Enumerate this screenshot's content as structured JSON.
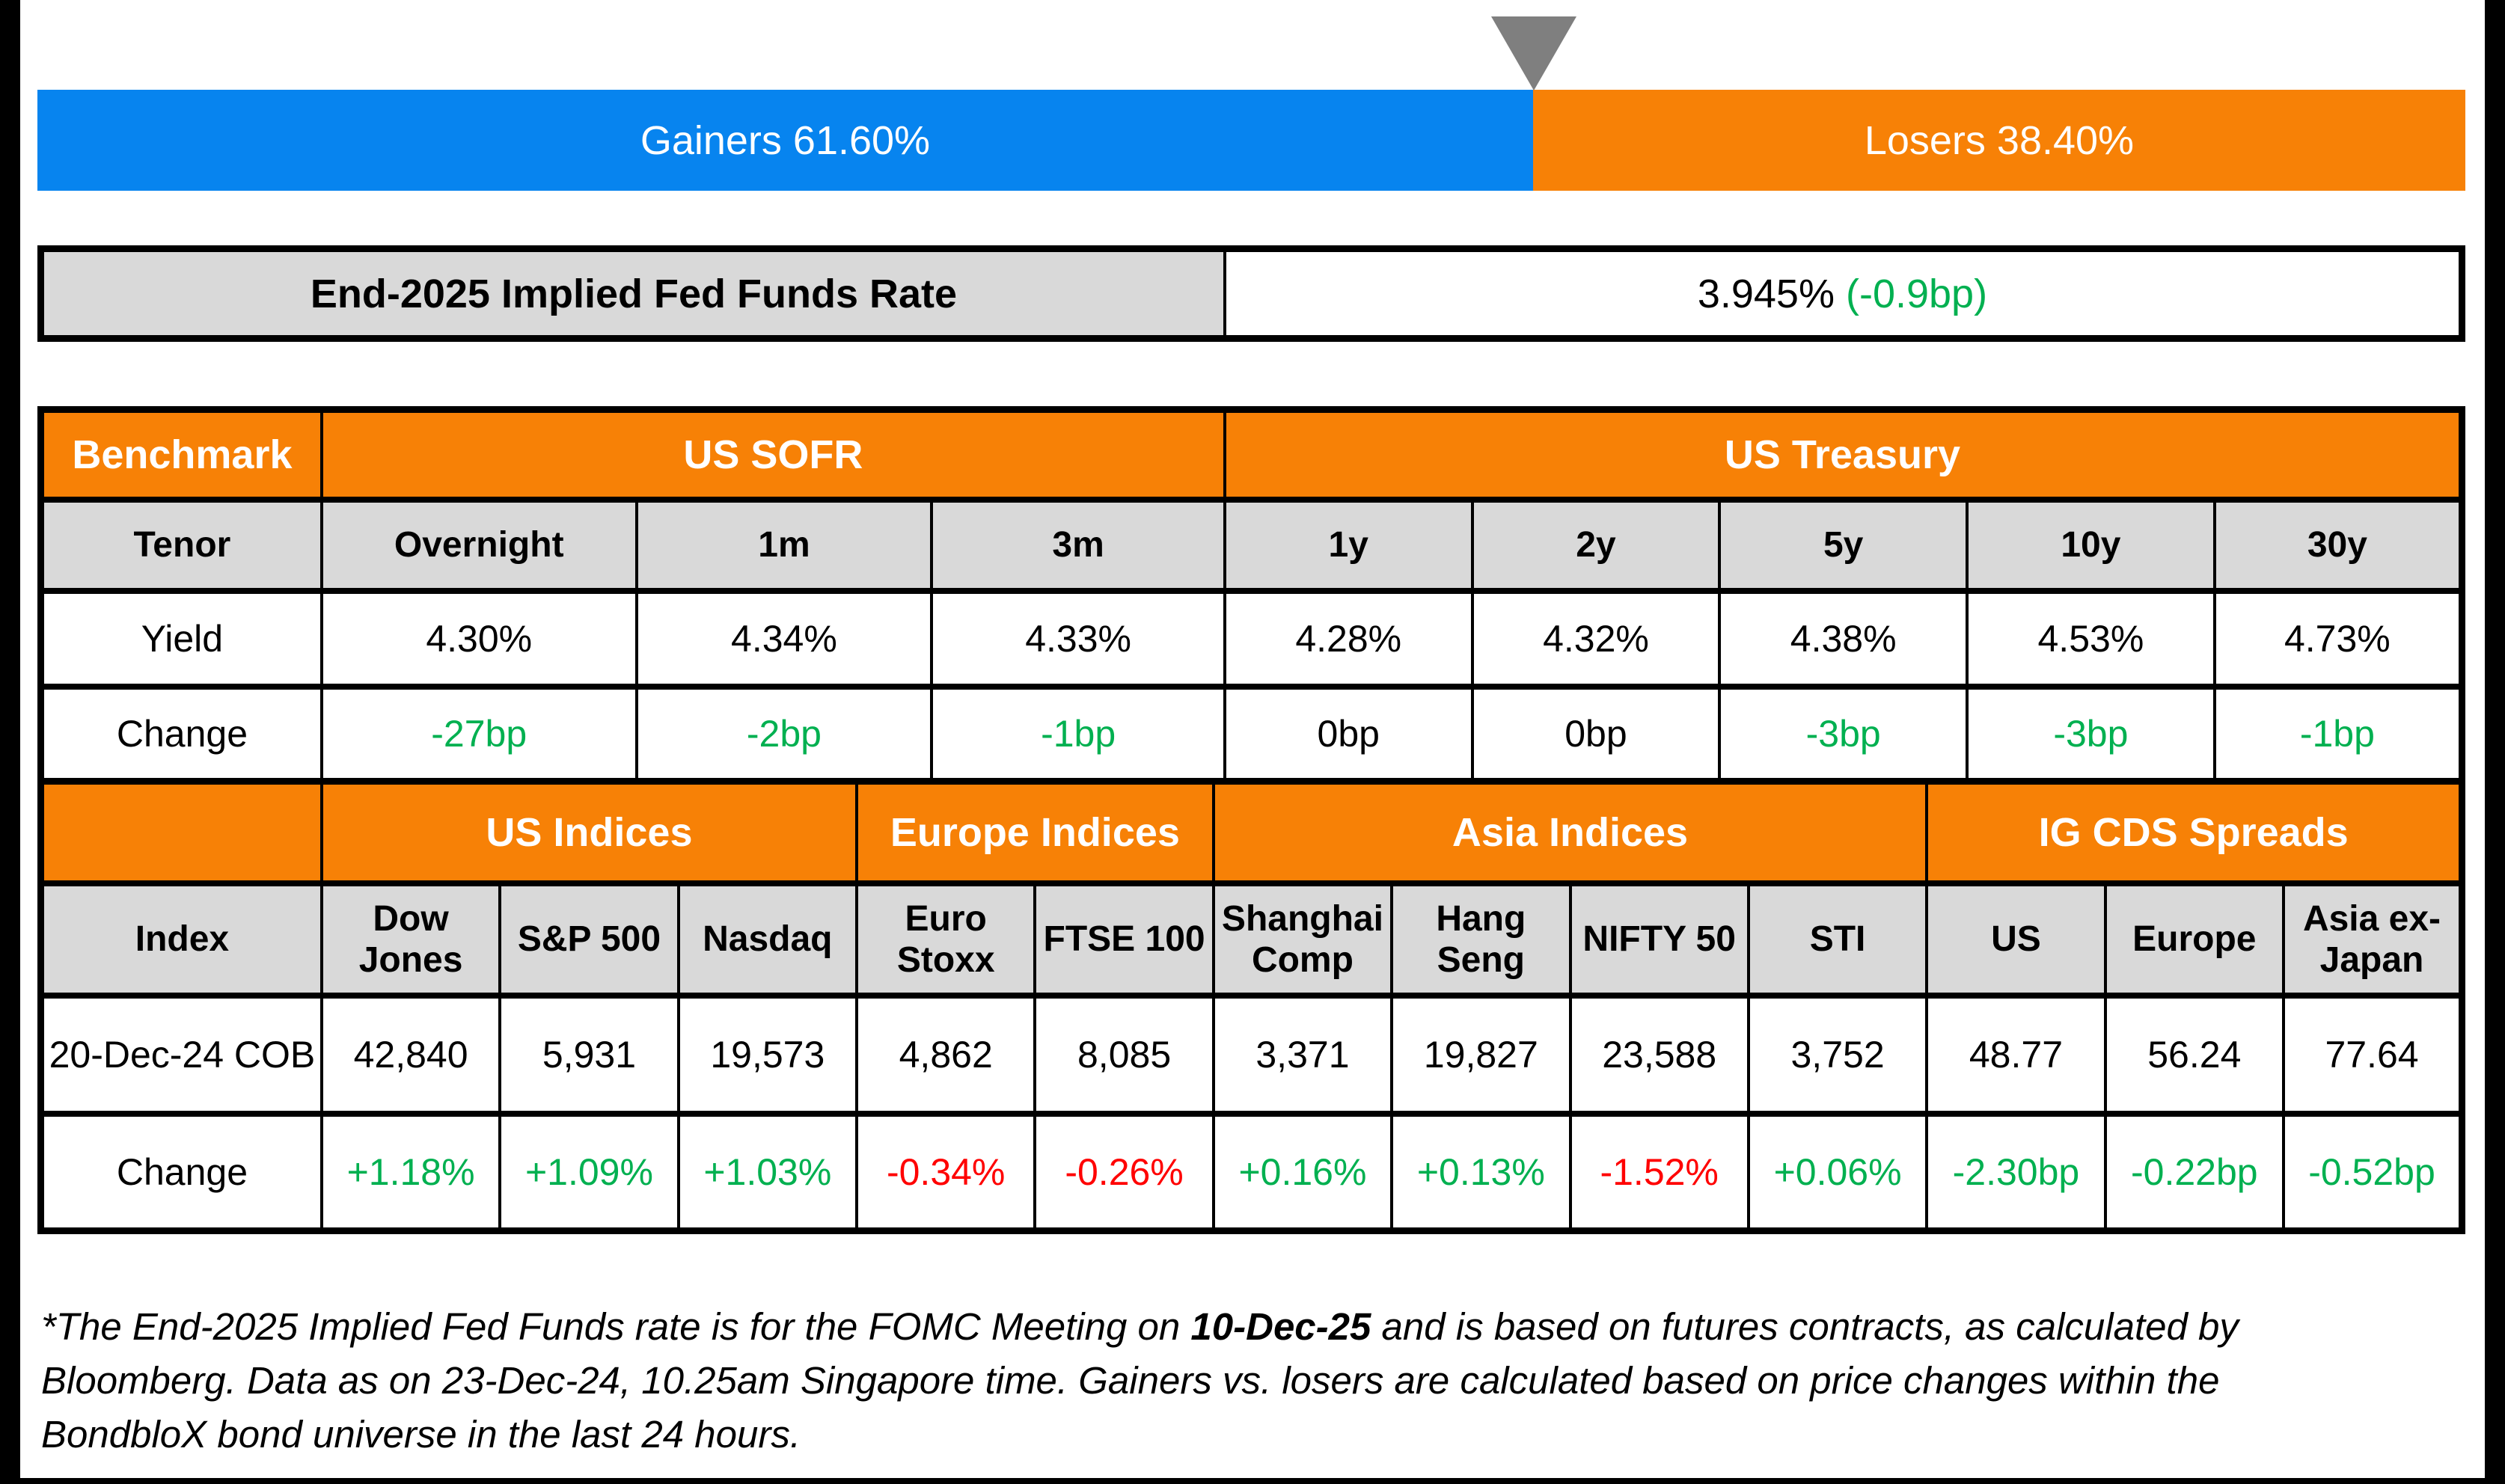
{
  "colors": {
    "gainers_blue": "#0784EF",
    "losers_orange": "#F78106",
    "header_orange": "#F78106",
    "positive_green": "#00B050",
    "negative_red": "#FF0000",
    "subheader_gray": "#D9D9D9",
    "marker_gray": "#7F7F7F",
    "border_black": "#000000"
  },
  "gainers_losers_bar": {
    "gainers": {
      "label": "Gainers 61.60%",
      "pct": 61.6
    },
    "losers": {
      "label": "Losers 38.40%",
      "pct": 38.4
    }
  },
  "fed_funds": {
    "label": "End-2025 Implied Fed Funds Rate",
    "value": "3.945%",
    "change": "(-0.9bp)"
  },
  "benchmark": {
    "corner": "Benchmark",
    "sofr_group": "US SOFR",
    "treasury_group": "US Treasury",
    "tenor": {
      "label": "Tenor",
      "cells": [
        "Overnight",
        "1m",
        "3m",
        "1y",
        "2y",
        "5y",
        "10y",
        "30y"
      ]
    },
    "yield": {
      "label": "Yield",
      "cells": [
        "4.30%",
        "4.34%",
        "4.33%",
        "4.28%",
        "4.32%",
        "4.38%",
        "4.53%",
        "4.73%"
      ]
    },
    "change": {
      "label": "Change",
      "cells": [
        {
          "t": "-27bp",
          "c": "pos"
        },
        {
          "t": "-2bp",
          "c": "pos"
        },
        {
          "t": "-1bp",
          "c": "pos"
        },
        {
          "t": "0bp",
          "c": "neutral"
        },
        {
          "t": "0bp",
          "c": "neutral"
        },
        {
          "t": "-3bp",
          "c": "pos"
        },
        {
          "t": "-3bp",
          "c": "pos"
        },
        {
          "t": "-1bp",
          "c": "pos"
        }
      ]
    }
  },
  "indices": {
    "corner": "",
    "us_group": "US Indices",
    "europe_group": "Europe Indices",
    "asia_group": "Asia Indices",
    "cds_group": "IG CDS Spreads",
    "names": {
      "label": "Index",
      "cells": [
        "Dow Jones",
        "S&P 500",
        "Nasdaq",
        "Euro Stoxx",
        "FTSE 100",
        "Shanghai Comp",
        "Hang Seng",
        "NIFTY 50",
        "STI",
        "US",
        "Europe",
        "Asia ex-Japan"
      ]
    },
    "cob": {
      "label": "20-Dec-24 COB",
      "cells": [
        "42,840",
        "5,931",
        "19,573",
        "4,862",
        "8,085",
        "3,371",
        "19,827",
        "23,588",
        "3,752",
        "48.77",
        "56.24",
        "77.64"
      ]
    },
    "change": {
      "label": "Change",
      "cells": [
        {
          "t": "+1.18%",
          "c": "pos"
        },
        {
          "t": "+1.09%",
          "c": "pos"
        },
        {
          "t": "+1.03%",
          "c": "pos"
        },
        {
          "t": "-0.34%",
          "c": "neg"
        },
        {
          "t": "-0.26%",
          "c": "neg"
        },
        {
          "t": "+0.16%",
          "c": "pos"
        },
        {
          "t": "+0.13%",
          "c": "pos"
        },
        {
          "t": "-1.52%",
          "c": "neg"
        },
        {
          "t": "+0.06%",
          "c": "pos"
        },
        {
          "t": "-2.30bp",
          "c": "pos"
        },
        {
          "t": "-0.22bp",
          "c": "pos"
        },
        {
          "t": "-0.52bp",
          "c": "pos"
        }
      ]
    }
  },
  "footnote": {
    "part1": "*The End-2025 Implied Fed Funds rate is for the FOMC Meeting on ",
    "bold": "10-Dec-25",
    "part2": " and is based on futures contracts, as calculated by\nBloomberg. Data as on 23-Dec-24, 10.25am Singapore time. Gainers vs. losers are calculated based on price changes within the\nBondbloX bond universe in the last 24 hours."
  },
  "chart_data": [
    {
      "type": "bar",
      "title": "Gainers vs Losers (BondbloX bond universe, last 24 hours)",
      "orientation": "horizontal-stacked",
      "categories": [
        "Gainers",
        "Losers"
      ],
      "values": [
        61.6,
        38.4
      ],
      "unit": "%",
      "colors": [
        "#0784EF",
        "#F78106"
      ],
      "annotation": "gray down-triangle marker at the 61.60/38.40 split"
    },
    {
      "type": "table",
      "title": "End-2025 Implied Fed Funds Rate",
      "rows": [
        [
          "End-2025 Implied Fed Funds Rate",
          "3.945% (-0.9bp)"
        ]
      ]
    },
    {
      "type": "table",
      "title": "Benchmark",
      "groups": {
        "US SOFR": [
          "Overnight",
          "1m",
          "3m"
        ],
        "US Treasury": [
          "1y",
          "2y",
          "5y",
          "10y",
          "30y"
        ]
      },
      "columns": [
        "Tenor",
        "Overnight",
        "1m",
        "3m",
        "1y",
        "2y",
        "5y",
        "10y",
        "30y"
      ],
      "rows": [
        [
          "Yield",
          "4.30%",
          "4.34%",
          "4.33%",
          "4.28%",
          "4.32%",
          "4.38%",
          "4.53%",
          "4.73%"
        ],
        [
          "Change",
          "-27bp",
          "-2bp",
          "-1bp",
          "0bp",
          "0bp",
          "-3bp",
          "-3bp",
          "-1bp"
        ]
      ]
    },
    {
      "type": "table",
      "title": "Indices and IG CDS Spreads",
      "groups": {
        "US Indices": [
          "Dow Jones",
          "S&P 500",
          "Nasdaq"
        ],
        "Europe Indices": [
          "Euro Stoxx",
          "FTSE 100"
        ],
        "Asia Indices": [
          "Shanghai Comp",
          "Hang Seng",
          "NIFTY 50",
          "STI"
        ],
        "IG CDS Spreads": [
          "US",
          "Europe",
          "Asia ex-Japan"
        ]
      },
      "columns": [
        "Index",
        "Dow Jones",
        "S&P 500",
        "Nasdaq",
        "Euro Stoxx",
        "FTSE 100",
        "Shanghai Comp",
        "Hang Seng",
        "NIFTY 50",
        "STI",
        "US",
        "Europe",
        "Asia ex-Japan"
      ],
      "rows": [
        [
          "20-Dec-24 COB",
          "42,840",
          "5,931",
          "19,573",
          "4,862",
          "8,085",
          "3,371",
          "19,827",
          "23,588",
          "3,752",
          "48.77",
          "56.24",
          "77.64"
        ],
        [
          "Change",
          "+1.18%",
          "+1.09%",
          "+1.03%",
          "-0.34%",
          "-0.26%",
          "+0.16%",
          "+0.13%",
          "-1.52%",
          "+0.06%",
          "-2.30bp",
          "-0.22bp",
          "-0.52bp"
        ]
      ]
    }
  ]
}
